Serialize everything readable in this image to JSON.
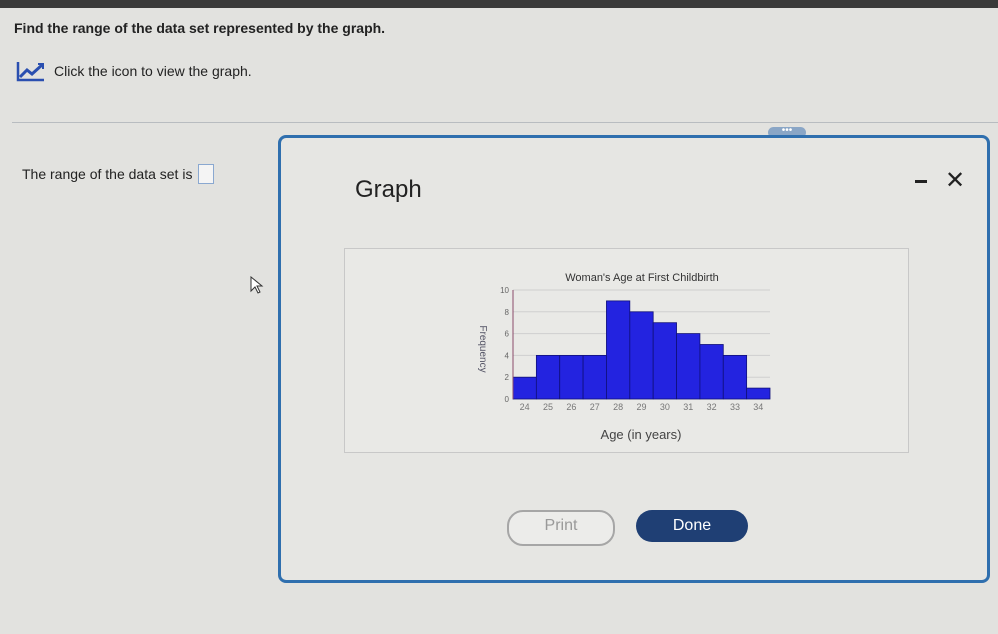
{
  "question": "Find the range of the data set represented by the graph.",
  "graph_link": {
    "icon": "line-chart-icon",
    "label": "Click the icon to view the graph."
  },
  "answer": {
    "prefix": "The range of the data set is",
    "value": ""
  },
  "dialog": {
    "title": "Graph",
    "handle": "•••",
    "print_label": "Print",
    "done_label": "Done",
    "close_glyph": "✕"
  },
  "colors": {
    "bar": "#2323e0",
    "dialog_border": "#2f6fae",
    "done_button": "#1f3f74"
  },
  "chart_data": {
    "type": "bar",
    "title": "Woman's Age at First Childbirth",
    "xlabel": "Age (in years)",
    "ylabel": "Frequency",
    "categories": [
      "24",
      "25",
      "26",
      "27",
      "28",
      "29",
      "30",
      "31",
      "32",
      "33",
      "34"
    ],
    "values": [
      2,
      4,
      4,
      4,
      9,
      8,
      7,
      6,
      5,
      4,
      1
    ],
    "ylim": [
      0,
      10
    ],
    "yticks": [
      "0",
      "2",
      "4",
      "6",
      "8",
      "10"
    ],
    "grid": true
  }
}
